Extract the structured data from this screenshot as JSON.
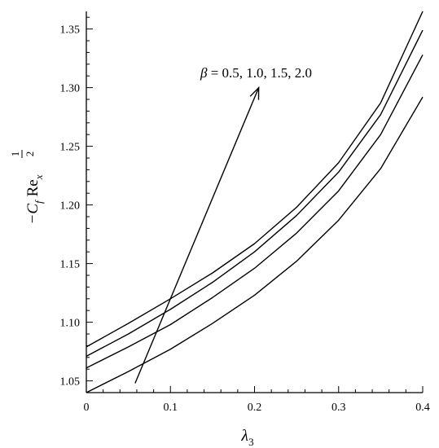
{
  "chart_data": {
    "type": "line",
    "xlabel": {
      "symbol": "λ",
      "subscript": "3"
    },
    "ylabel": {
      "prefix": "−C",
      "c_sub": "f",
      "re": "Re",
      "re_sub": "x",
      "exp_num": "1",
      "exp_den": "2"
    },
    "xlim": [
      0,
      0.4
    ],
    "ylim": [
      1.04,
      1.365
    ],
    "xticks": [
      0,
      0.1,
      0.2,
      0.3,
      0.4
    ],
    "xtick_labels": [
      "0",
      "0.1",
      "0.2",
      "0.3",
      "0.4"
    ],
    "yticks": [
      1.05,
      1.1,
      1.15,
      1.2,
      1.25,
      1.3,
      1.35
    ],
    "ytick_labels": [
      "1.05",
      "1.10",
      "1.15",
      "1.20",
      "1.25",
      "1.30",
      "1.35"
    ],
    "grid": false,
    "x": [
      0,
      0.05,
      0.1,
      0.15,
      0.2,
      0.25,
      0.3,
      0.35,
      0.4
    ],
    "series": [
      {
        "values": [
          1.04,
          1.058,
          1.077,
          1.099,
          1.123,
          1.152,
          1.187,
          1.231,
          1.292
        ]
      },
      {
        "values": [
          1.061,
          1.079,
          1.098,
          1.121,
          1.146,
          1.176,
          1.212,
          1.26,
          1.328
        ]
      },
      {
        "values": [
          1.071,
          1.09,
          1.111,
          1.134,
          1.16,
          1.191,
          1.228,
          1.277,
          1.349
        ]
      },
      {
        "values": [
          1.079,
          1.099,
          1.12,
          1.142,
          1.167,
          1.198,
          1.236,
          1.287,
          1.365
        ]
      }
    ],
    "annotation": {
      "text": "β = 0.5, 1.0, 1.5, 2.0",
      "greek": "β",
      "rest": " = 0.5, 1.0, 1.5, 2.0",
      "arrow_from": [
        0.058,
        1.048
      ],
      "arrow_to": [
        0.205,
        1.3
      ]
    }
  }
}
